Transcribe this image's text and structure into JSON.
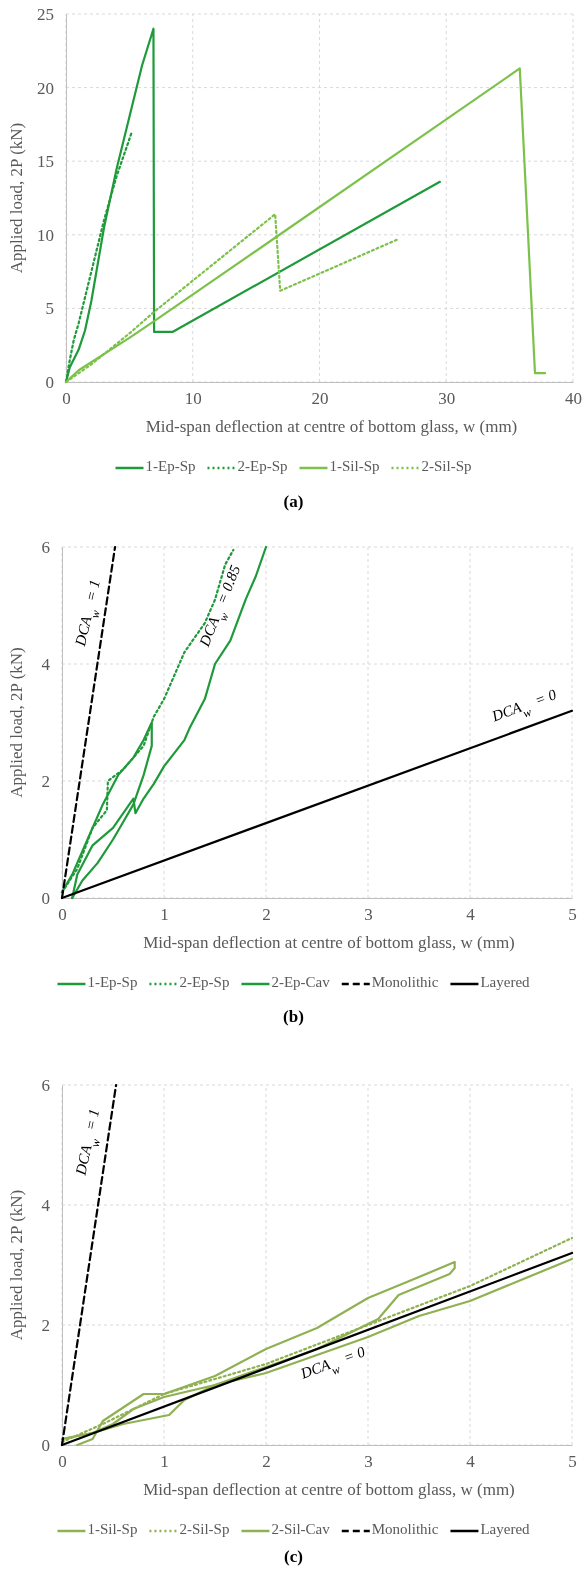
{
  "chart_data": [
    {
      "type": "line",
      "title": "(a)",
      "xlabel": "Mid-span deflection at centre of bottom glass, w (mm)",
      "ylabel": "Applied load, 2P (kN)",
      "xlim": [
        0,
        40
      ],
      "ylim": [
        0,
        25
      ],
      "xticks": [
        0,
        10,
        20,
        30,
        40
      ],
      "yticks": [
        0,
        5,
        10,
        15,
        20,
        25
      ],
      "grid": true,
      "legend": "bottom",
      "series": [
        {
          "name": "1-Ep-Sp",
          "color": "#1f9a3b",
          "line_style": "solid",
          "x": [
            0,
            0.3,
            1,
            1.5,
            2,
            2.5,
            3,
            4,
            5,
            6,
            6.9,
            6.95,
            8.4,
            29.5
          ],
          "values": [
            0,
            1,
            2.2,
            3.5,
            5.5,
            8,
            10.5,
            14.5,
            18,
            21.5,
            24,
            3.4,
            3.4,
            13.6
          ]
        },
        {
          "name": "2-Ep-Sp",
          "color": "#1f9a3b",
          "line_style": "dotted",
          "x": [
            0,
            0.3,
            0.6,
            1,
            2,
            3,
            4,
            5.2
          ],
          "values": [
            0,
            1.5,
            2.8,
            4,
            7.5,
            11,
            14,
            17
          ]
        },
        {
          "name": "1-Sil-Sp",
          "color": "#7cc24a",
          "line_style": "solid",
          "x": [
            0,
            1,
            5,
            6.9,
            16.5,
            35.8,
            37,
            37.8
          ],
          "values": [
            0,
            0.8,
            3,
            4.1,
            9.8,
            21.3,
            0.6,
            0.6
          ]
        },
        {
          "name": "2-Sil-Sp",
          "color": "#7cc24a",
          "line_style": "dotted",
          "x": [
            0,
            2,
            5,
            7,
            16.5,
            16.9,
            26.2
          ],
          "values": [
            0,
            1.2,
            3.3,
            4.8,
            11.4,
            6.2,
            9.7
          ]
        }
      ]
    },
    {
      "type": "line",
      "title": "(b)",
      "xlabel": "Mid-span deflection at centre of bottom glass, w (mm)",
      "ylabel": "Applied load, 2P (kN)",
      "xlim": [
        0,
        5
      ],
      "ylim": [
        0,
        6
      ],
      "xticks": [
        0,
        1,
        2,
        3,
        4,
        5
      ],
      "yticks": [
        0,
        2,
        4,
        6
      ],
      "grid": true,
      "legend": "bottom",
      "annotations": [
        "DCA$_{w}$ = 1",
        "DCA$_{w}$ = 0.85",
        "DCA$_{w}$ = 0"
      ],
      "series": [
        {
          "name": "1-Ep-Sp",
          "color": "#1f9a3b",
          "line_style": "solid",
          "x": [
            0.1,
            0.15,
            0.3,
            0.5,
            0.7,
            0.72,
            0.8,
            0.9,
            1,
            1.2,
            1.25,
            1.4,
            1.5,
            1.65,
            1.8,
            1.9,
            2
          ],
          "values": [
            0,
            0.4,
            0.9,
            1.2,
            1.7,
            1.45,
            1.7,
            1.95,
            2.25,
            2.7,
            2.9,
            3.4,
            4,
            4.4,
            5.1,
            5.5,
            6
          ]
        },
        {
          "name": "2-Ep-Sp",
          "color": "#1f9a3b",
          "line_style": "dotted",
          "x": [
            0,
            0.15,
            0.3,
            0.44,
            0.45,
            0.6,
            0.8,
            0.9,
            1,
            1.2,
            1.4,
            1.5,
            1.6,
            1.68
          ],
          "values": [
            0.1,
            0.5,
            1.2,
            1.5,
            2,
            2.2,
            2.6,
            3.1,
            3.4,
            4.2,
            4.7,
            5.1,
            5.7,
            5.95
          ]
        },
        {
          "name": "2-Ep-Cav",
          "color": "#1f9a3b",
          "line_style": "solid",
          "x": [
            0.1,
            0.2,
            0.35,
            0.5,
            0.6,
            0.7,
            0.8,
            0.88,
            0.88,
            0.8,
            0.7,
            0.55,
            0.4,
            0.25,
            0.1,
            0
          ],
          "values": [
            0,
            0.3,
            0.6,
            1,
            1.3,
            1.6,
            2.1,
            2.6,
            3,
            2.7,
            2.4,
            2.1,
            1.6,
            1,
            0.4,
            0.1
          ]
        },
        {
          "name": "Monolithic",
          "color": "#000000",
          "line_style": "dashed",
          "x": [
            0,
            0.52
          ],
          "values": [
            0,
            6
          ]
        },
        {
          "name": "Layered",
          "color": "#000000",
          "line_style": "solid",
          "x": [
            0,
            5
          ],
          "values": [
            0,
            3.2
          ]
        }
      ]
    },
    {
      "type": "line",
      "title": "(c)",
      "xlabel": "Mid-span deflection at centre of bottom glass, w (mm)",
      "ylabel": "Applied load, 2P (kN)",
      "xlim": [
        0,
        5
      ],
      "ylim": [
        0,
        6
      ],
      "xticks": [
        0,
        1,
        2,
        3,
        4,
        5
      ],
      "yticks": [
        0,
        2,
        4,
        6
      ],
      "grid": true,
      "legend": "bottom",
      "annotations": [
        "DCA$_{w}$ = 1",
        "DCA$_{w}$ = 0"
      ],
      "series": [
        {
          "name": "1-Sil-Sp",
          "color": "#8fb151",
          "line_style": "solid",
          "x": [
            0,
            0.3,
            0.5,
            0.7,
            1,
            1.5,
            2,
            2.5,
            3,
            3.5,
            4,
            4.5,
            5
          ],
          "values": [
            0.1,
            0.2,
            0.35,
            0.6,
            0.8,
            1,
            1.2,
            1.5,
            1.8,
            2.15,
            2.4,
            2.75,
            3.1
          ]
        },
        {
          "name": "2-Sil-Sp",
          "color": "#8fb151",
          "line_style": "dotted",
          "x": [
            0,
            0.4,
            1,
            2,
            3,
            4,
            5
          ],
          "values": [
            0.05,
            0.35,
            0.85,
            1.35,
            2,
            2.65,
            3.45
          ]
        },
        {
          "name": "2-Sil-Cav",
          "color": "#8fb151",
          "line_style": "solid",
          "x": [
            0.15,
            0.3,
            0.4,
            0.8,
            1,
            1.5,
            2,
            2.5,
            3,
            3.5,
            3.85,
            3.85,
            3.8,
            3.3,
            3.1,
            2.5,
            2,
            1.5,
            1.2,
            1.05,
            0.6,
            0.3,
            0
          ],
          "values": [
            0,
            0.1,
            0.4,
            0.85,
            0.85,
            1.15,
            1.6,
            1.95,
            2.45,
            2.8,
            3.05,
            2.95,
            2.85,
            2.5,
            2.1,
            1.6,
            1.3,
            1,
            0.75,
            0.5,
            0.35,
            0.2,
            0.1
          ]
        },
        {
          "name": "Monolithic",
          "color": "#000000",
          "line_style": "dashed",
          "x": [
            0,
            0.53
          ],
          "values": [
            0,
            6
          ]
        },
        {
          "name": "Layered",
          "color": "#000000",
          "line_style": "solid",
          "x": [
            0,
            5
          ],
          "values": [
            0,
            3.2
          ]
        }
      ]
    }
  ]
}
